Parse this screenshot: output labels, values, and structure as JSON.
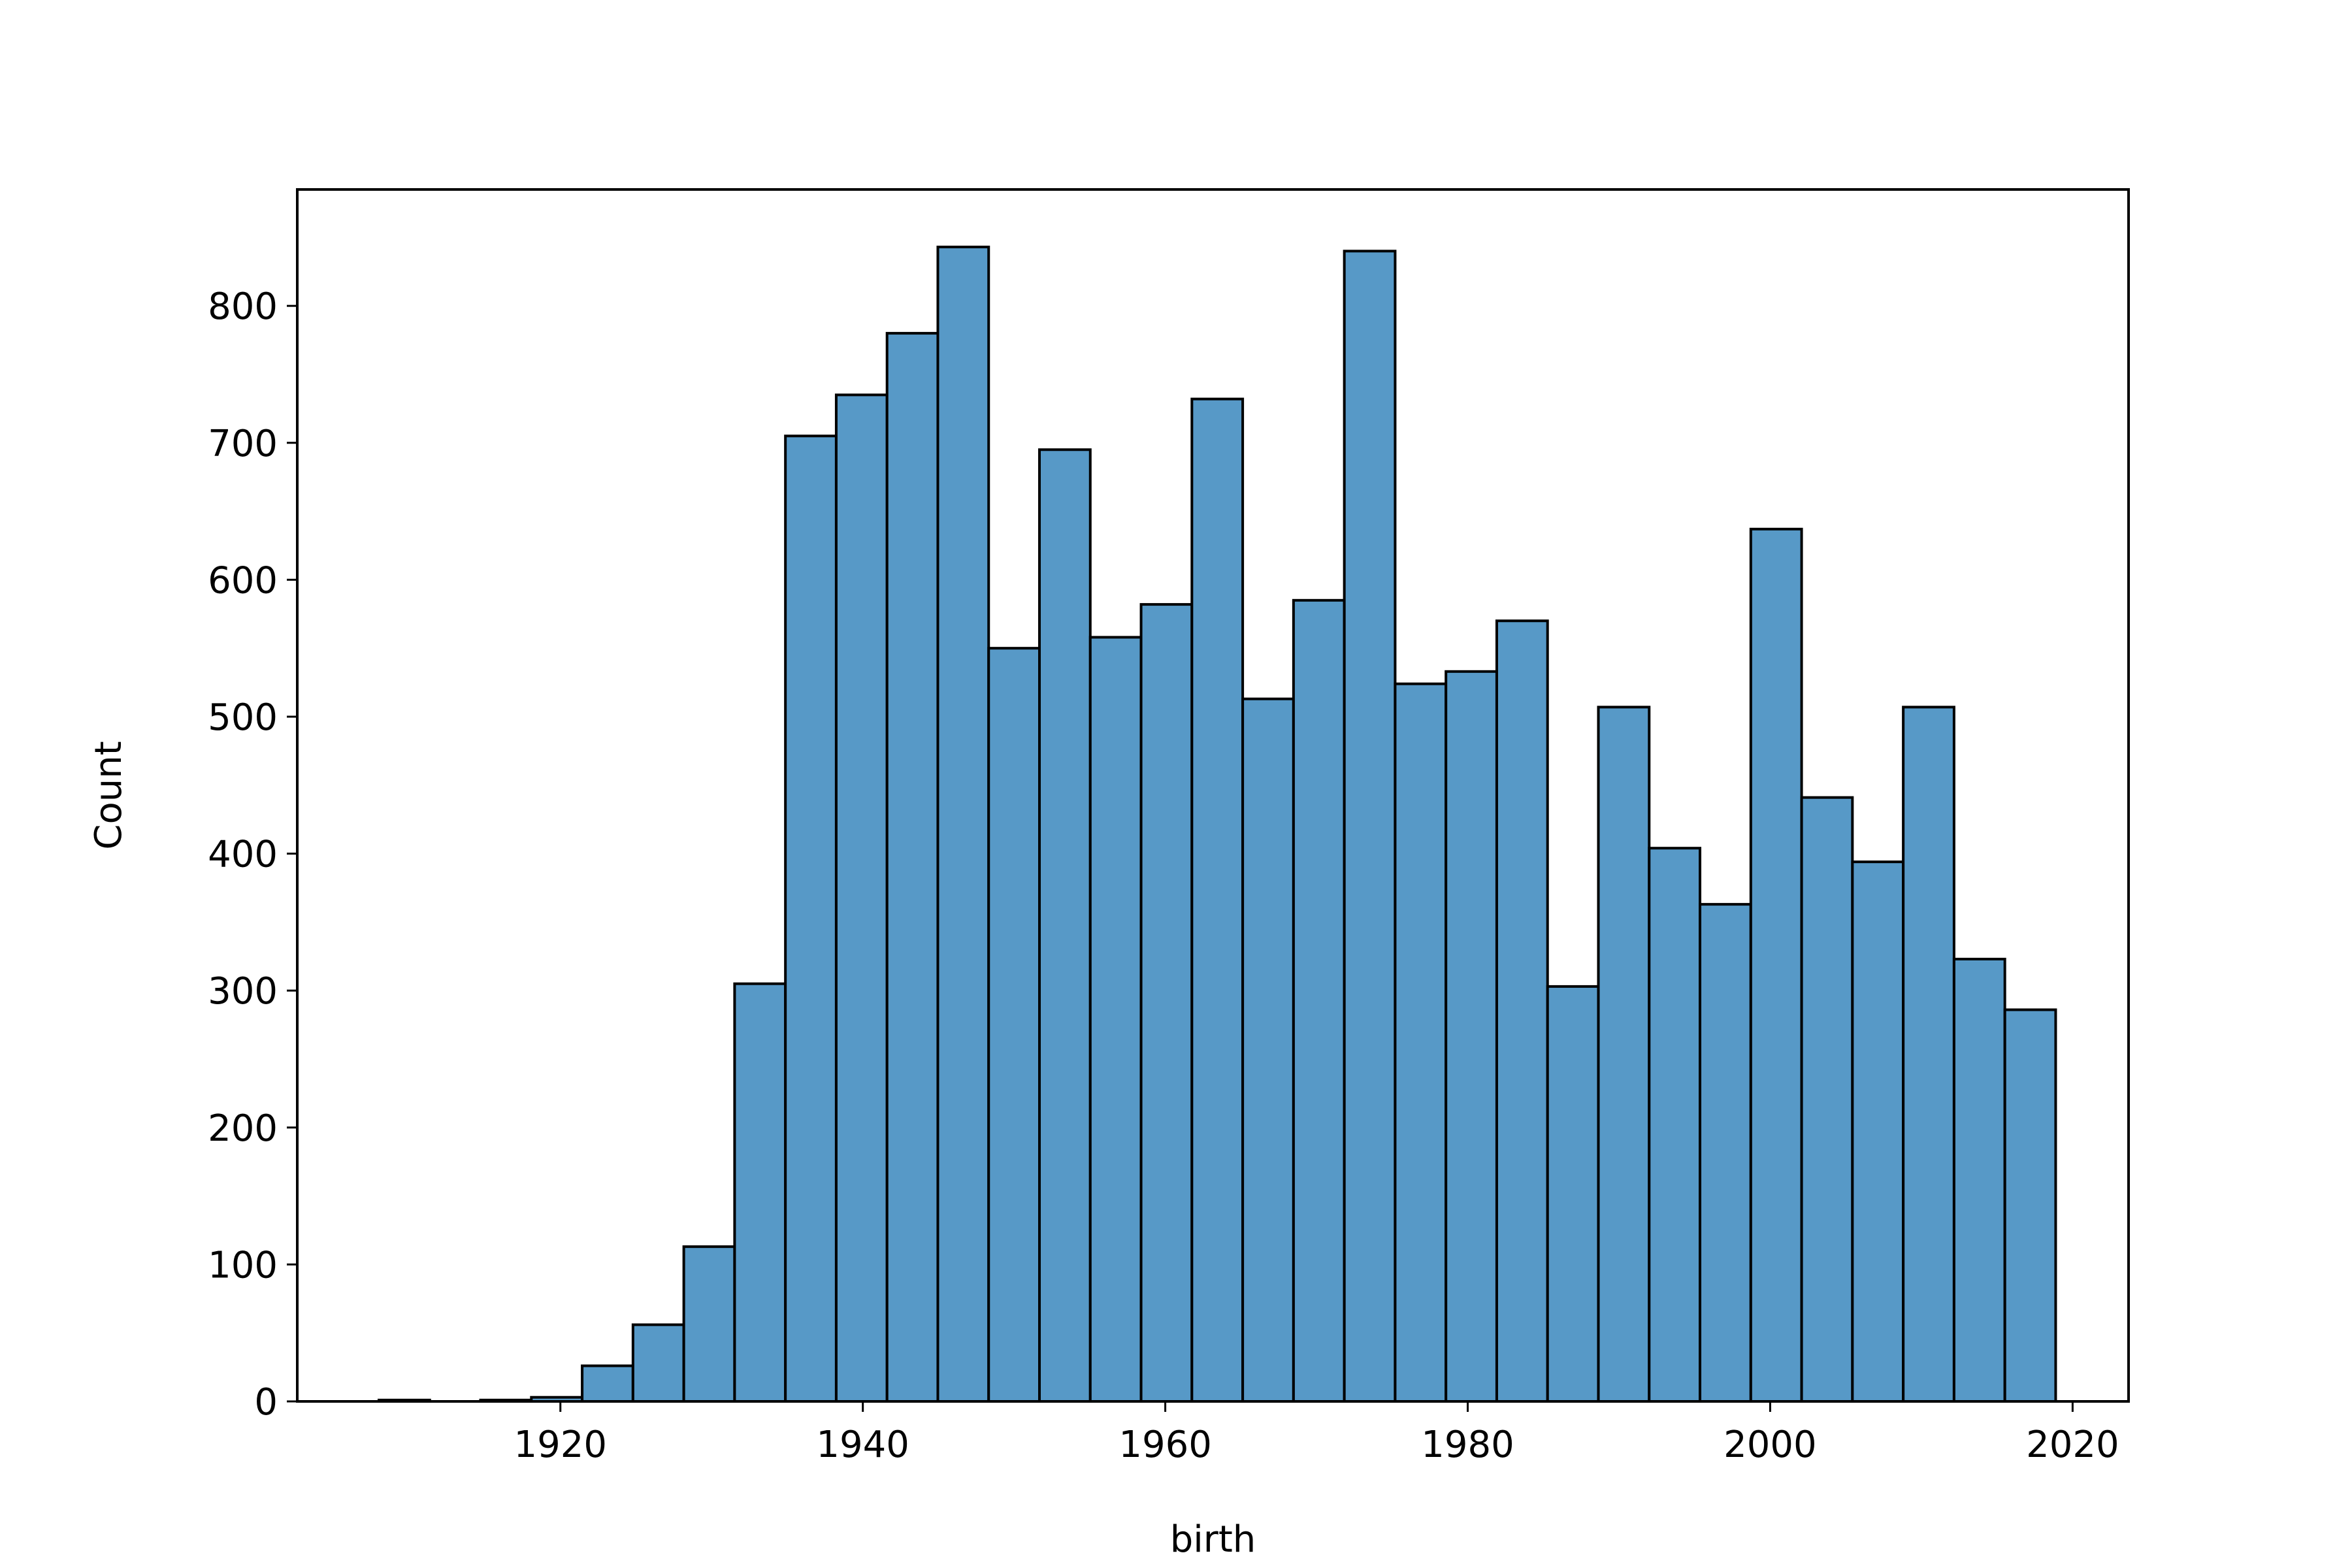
{
  "chart_data": {
    "type": "bar",
    "xlabel": "birth",
    "ylabel": "Count",
    "title": "",
    "xlim": [
      1902.6,
      2023.7
    ],
    "ylim": [
      0,
      885
    ],
    "xticks": [
      1920,
      1940,
      1960,
      1980,
      2000,
      2020
    ],
    "yticks": [
      0,
      100,
      200,
      300,
      400,
      500,
      600,
      700,
      800
    ],
    "grid": false,
    "legend": false,
    "bar_color": "#5799c7",
    "edge_color": "#000000",
    "bin_edges": [
      1908.0,
      1911.36,
      1914.72,
      1918.08,
      1921.44,
      1924.8,
      1928.16,
      1931.52,
      1934.88,
      1938.24,
      1941.6,
      1944.96,
      1948.32,
      1951.68,
      1955.04,
      1958.4,
      1961.76,
      1965.12,
      1968.48,
      1971.84,
      1975.2,
      1978.56,
      1981.92,
      1985.28,
      1988.64,
      1992.0,
      1995.36,
      1998.72,
      2002.08,
      2005.44,
      2008.8,
      2012.16,
      2015.52,
      2018.88
    ],
    "values": [
      1,
      0,
      1,
      3,
      26,
      56,
      113,
      305,
      705,
      735,
      780,
      843,
      550,
      695,
      558,
      582,
      732,
      513,
      585,
      840,
      524,
      533,
      570,
      303,
      507,
      404,
      363,
      637,
      441,
      394,
      507,
      323,
      286
    ]
  }
}
